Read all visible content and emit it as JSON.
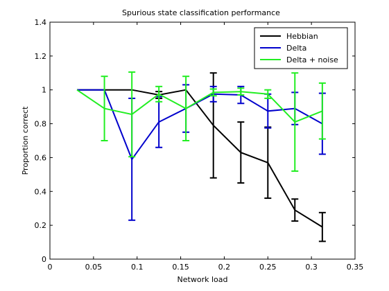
{
  "chart_data": {
    "type": "line",
    "title": "Spurious state classification performance",
    "xlabel": "Network load",
    "ylabel": "Proportion correct",
    "xlim": [
      0,
      0.35
    ],
    "ylim": [
      0,
      1.4
    ],
    "xticks": [
      0,
      0.05,
      0.1,
      0.15,
      0.2,
      0.25,
      0.3,
      0.35
    ],
    "xtick_labels": [
      "0",
      "0.05",
      "0.1",
      "0.15",
      "0.2",
      "0.25",
      "0.3",
      "0.35"
    ],
    "yticks": [
      0,
      0.2,
      0.4,
      0.6,
      0.8,
      1.0,
      1.2,
      1.4
    ],
    "ytick_labels": [
      "0",
      "0.2",
      "0.4",
      "0.6",
      "0.8",
      "1",
      "1.2",
      "1.4"
    ],
    "grid": false,
    "legend_position": "top-right",
    "x": [
      0.031,
      0.0625,
      0.094,
      0.125,
      0.156,
      0.1875,
      0.219,
      0.25,
      0.281,
      0.3125
    ],
    "series": [
      {
        "name": "Hebbian",
        "color": "#000000",
        "values": [
          1.0,
          1.0,
          1.0,
          0.97,
          1.0,
          0.79,
          0.63,
          0.57,
          0.29,
          0.19
        ],
        "errors": [
          null,
          null,
          0.0,
          0.02,
          0.0,
          0.31,
          0.18,
          0.21,
          0.065,
          0.085
        ]
      },
      {
        "name": "Delta",
        "color": "#0000cc",
        "values": [
          1.0,
          1.0,
          0.59,
          0.81,
          0.89,
          0.975,
          0.97,
          0.875,
          0.89,
          0.8
        ],
        "errors": [
          null,
          null,
          0.36,
          0.15,
          0.14,
          0.045,
          0.05,
          0.1,
          0.095,
          0.18
        ]
      },
      {
        "name": "Delta + noise",
        "color": "#22ee22",
        "values": [
          1.0,
          0.89,
          0.855,
          0.975,
          0.89,
          0.985,
          0.99,
          0.975,
          0.81,
          0.875
        ],
        "errors": [
          null,
          0.19,
          0.25,
          0.045,
          0.19,
          0.02,
          0.02,
          0.025,
          0.29,
          0.165
        ]
      }
    ]
  }
}
